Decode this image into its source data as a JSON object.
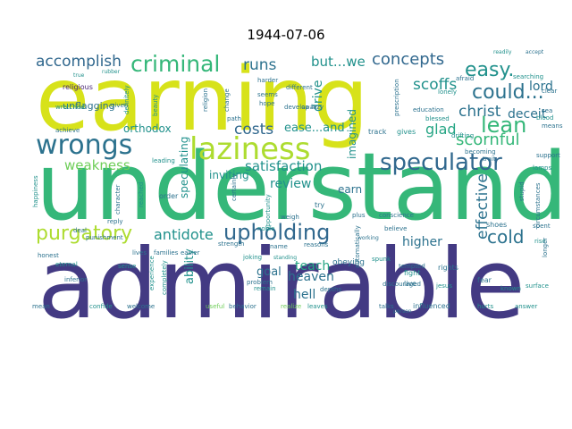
{
  "title": "1944-07-06",
  "palette": {
    "dark_purple": "#433a83",
    "purple": "#482475",
    "blue": "#31688e",
    "teal_blue": "#2c728e",
    "teal": "#21918c",
    "green_teal": "#25a584",
    "green": "#35b779",
    "light_green": "#6ece58",
    "lime": "#addc30",
    "yellow": "#d7e21a"
  },
  "words": [
    {
      "text": "earning",
      "color": "yellow"
    },
    {
      "text": "understand",
      "color": "green"
    },
    {
      "text": "admirable",
      "color": "dark_purple"
    },
    {
      "text": "wrongs",
      "color": "teal_blue"
    },
    {
      "text": "laziness",
      "color": "lime"
    },
    {
      "text": "criminal",
      "color": "green"
    },
    {
      "text": "speculator",
      "color": "blue"
    },
    {
      "text": "upholding",
      "color": "blue"
    },
    {
      "text": "easy.",
      "color": "teal"
    },
    {
      "text": "could...",
      "color": "teal_blue"
    },
    {
      "text": "lean",
      "color": "green"
    },
    {
      "text": "purgatory",
      "color": "lime"
    },
    {
      "text": "accomplish",
      "color": "blue"
    },
    {
      "text": "concepts",
      "color": "blue"
    },
    {
      "text": "runs",
      "color": "teal_blue"
    },
    {
      "text": "but...we",
      "color": "teal"
    },
    {
      "text": "scoffs",
      "color": "teal"
    },
    {
      "text": "christ",
      "color": "teal_blue"
    },
    {
      "text": "scornful",
      "color": "green"
    },
    {
      "text": "glad",
      "color": "green_teal"
    },
    {
      "text": "cold",
      "color": "teal_blue"
    },
    {
      "text": "weakness",
      "color": "light_green"
    },
    {
      "text": "satisfaction",
      "color": "teal"
    },
    {
      "text": "costs",
      "color": "blue"
    },
    {
      "text": "ease...and",
      "color": "teal"
    },
    {
      "text": "antidote",
      "color": "teal"
    },
    {
      "text": "effective",
      "color": "teal_blue"
    },
    {
      "text": "deceit",
      "color": "teal_blue"
    },
    {
      "text": "lord",
      "color": "teal_blue"
    },
    {
      "text": "review",
      "color": "teal"
    },
    {
      "text": "drive",
      "color": "teal"
    },
    {
      "text": "heaven",
      "color": "teal_blue"
    },
    {
      "text": "hell",
      "color": "teal_blue"
    },
    {
      "text": "goal",
      "color": "teal_blue"
    },
    {
      "text": "teach",
      "color": "green_teal"
    },
    {
      "text": "higher",
      "color": "teal_blue"
    },
    {
      "text": "ability",
      "color": "teal"
    },
    {
      "text": "earn",
      "color": "teal_blue"
    },
    {
      "text": "inviting",
      "color": "teal"
    },
    {
      "text": "speculating",
      "color": "teal"
    },
    {
      "text": "orthodox",
      "color": "teal"
    },
    {
      "text": "imagined",
      "color": "teal"
    },
    {
      "text": "unflagging",
      "color": "teal_blue"
    },
    {
      "text": "religious",
      "color": "purple"
    },
    {
      "text": "wretched",
      "color": "teal"
    },
    {
      "text": "achieve",
      "color": "teal_blue"
    },
    {
      "text": "happiness",
      "color": "teal"
    },
    {
      "text": "honest",
      "color": "teal_blue"
    },
    {
      "text": "eternal",
      "color": "teal"
    },
    {
      "text": "mean",
      "color": "teal_blue"
    },
    {
      "text": "inferior",
      "color": "teal_blue"
    },
    {
      "text": "confide",
      "color": "teal"
    },
    {
      "text": "welcome",
      "color": "teal_blue"
    },
    {
      "text": "useful",
      "color": "light_green"
    },
    {
      "text": "behavior",
      "color": "teal_blue"
    },
    {
      "text": "remain",
      "color": "teal"
    },
    {
      "text": "strength",
      "color": "teal_blue"
    },
    {
      "text": "joking",
      "color": "teal"
    },
    {
      "text": "obeying",
      "color": "teal_blue"
    },
    {
      "text": "conscience",
      "color": "teal_blue"
    },
    {
      "text": "believe",
      "color": "teal_blue"
    },
    {
      "text": "fight",
      "color": "teal"
    },
    {
      "text": "live",
      "color": "teal_blue"
    },
    {
      "text": "rights",
      "color": "teal_blue"
    },
    {
      "text": "fear",
      "color": "teal_blue"
    },
    {
      "text": "jesus",
      "color": "teal"
    },
    {
      "text": "answer",
      "color": "teal"
    },
    {
      "text": "talks",
      "color": "teal_blue"
    },
    {
      "text": "influenced",
      "color": "teal_blue"
    },
    {
      "text": "hurts",
      "color": "teal"
    },
    {
      "text": "surface",
      "color": "teal"
    },
    {
      "text": "shoes",
      "color": "teal_blue"
    },
    {
      "text": "spent",
      "color": "teal_blue"
    },
    {
      "text": "rise",
      "color": "teal"
    },
    {
      "text": "education",
      "color": "teal_blue"
    },
    {
      "text": "blessed",
      "color": "teal"
    },
    {
      "text": "becoming",
      "color": "teal_blue"
    },
    {
      "text": "drifting",
      "color": "teal"
    },
    {
      "text": "support",
      "color": "teal_blue"
    },
    {
      "text": "lonely",
      "color": "teal"
    },
    {
      "text": "afraid",
      "color": "teal_blue"
    },
    {
      "text": "searching",
      "color": "teal"
    },
    {
      "text": "readily",
      "color": "teal"
    },
    {
      "text": "accept",
      "color": "teal_blue"
    },
    {
      "text": "prescription",
      "color": "teal_blue"
    },
    {
      "text": "develop",
      "color": "teal_blue"
    },
    {
      "text": "lazy",
      "color": "teal_blue"
    },
    {
      "text": "track",
      "color": "teal_blue"
    },
    {
      "text": "gives",
      "color": "teal"
    },
    {
      "text": "trait",
      "color": "teal_blue"
    },
    {
      "text": "means",
      "color": "teal_blue"
    },
    {
      "text": "blood",
      "color": "teal"
    },
    {
      "text": "sea",
      "color": "teal_blue"
    },
    {
      "text": "clear",
      "color": "teal_blue"
    },
    {
      "text": "depths",
      "color": "teal_blue"
    },
    {
      "text": "noble",
      "color": "teal"
    },
    {
      "text": "plus",
      "color": "teal_blue"
    },
    {
      "text": "spunk",
      "color": "teal"
    },
    {
      "text": "experience",
      "color": "teal"
    },
    {
      "text": "completely",
      "color": "teal"
    },
    {
      "text": "problem",
      "color": "teal_blue"
    },
    {
      "text": "opportunity",
      "color": "teal"
    },
    {
      "text": "harder",
      "color": "teal_blue"
    },
    {
      "text": "different",
      "color": "teal_blue"
    },
    {
      "text": "hope",
      "color": "teal_blue"
    },
    {
      "text": "path",
      "color": "teal_blue"
    },
    {
      "text": "seems",
      "color": "teal_blue"
    },
    {
      "text": "definitely",
      "color": "teal"
    },
    {
      "text": "given",
      "color": "teal_blue"
    },
    {
      "text": "beauty",
      "color": "teal"
    },
    {
      "text": "punishment",
      "color": "teal_blue"
    },
    {
      "text": "families",
      "color": "teal_blue"
    },
    {
      "text": "easier",
      "color": "teal_blue"
    },
    {
      "text": "certainly",
      "color": "teal_blue"
    },
    {
      "text": "character",
      "color": "teal_blue"
    },
    {
      "text": "deal",
      "color": "teal_blue"
    },
    {
      "text": "reply",
      "color": "teal_blue"
    },
    {
      "text": "sense",
      "color": "teal"
    },
    {
      "text": "lives",
      "color": "teal_blue"
    },
    {
      "text": "leading",
      "color": "teal"
    },
    {
      "text": "order",
      "color": "teal_blue"
    },
    {
      "text": "reached",
      "color": "teal"
    },
    {
      "text": "standing",
      "color": "teal"
    },
    {
      "text": "reasons",
      "color": "teal_blue"
    },
    {
      "text": "weigh",
      "color": "teal_blue"
    },
    {
      "text": "leaves",
      "color": "teal"
    },
    {
      "text": "realize",
      "color": "light_green"
    },
    {
      "text": "working",
      "color": "teal_blue"
    },
    {
      "text": "tempted",
      "color": "teal_blue"
    },
    {
      "text": "discouraged",
      "color": "teal_blue"
    },
    {
      "text": "automatically",
      "color": "teal_blue"
    },
    {
      "text": "known",
      "color": "teal"
    },
    {
      "text": "lamps",
      "color": "teal"
    },
    {
      "text": "circumstances",
      "color": "teal_blue"
    },
    {
      "text": "stupid",
      "color": "teal_blue"
    },
    {
      "text": "longer",
      "color": "teal_blue"
    },
    {
      "text": "person",
      "color": "teal_blue"
    },
    {
      "text": "religion",
      "color": "teal_blue"
    },
    {
      "text": "change",
      "color": "teal_blue"
    },
    {
      "text": "rubber",
      "color": "teal"
    },
    {
      "text": "true",
      "color": "teal"
    },
    {
      "text": "try",
      "color": "teal_blue"
    },
    {
      "text": "awak",
      "color": "teal_blue"
    },
    {
      "text": "name",
      "color": "teal_blue"
    }
  ]
}
